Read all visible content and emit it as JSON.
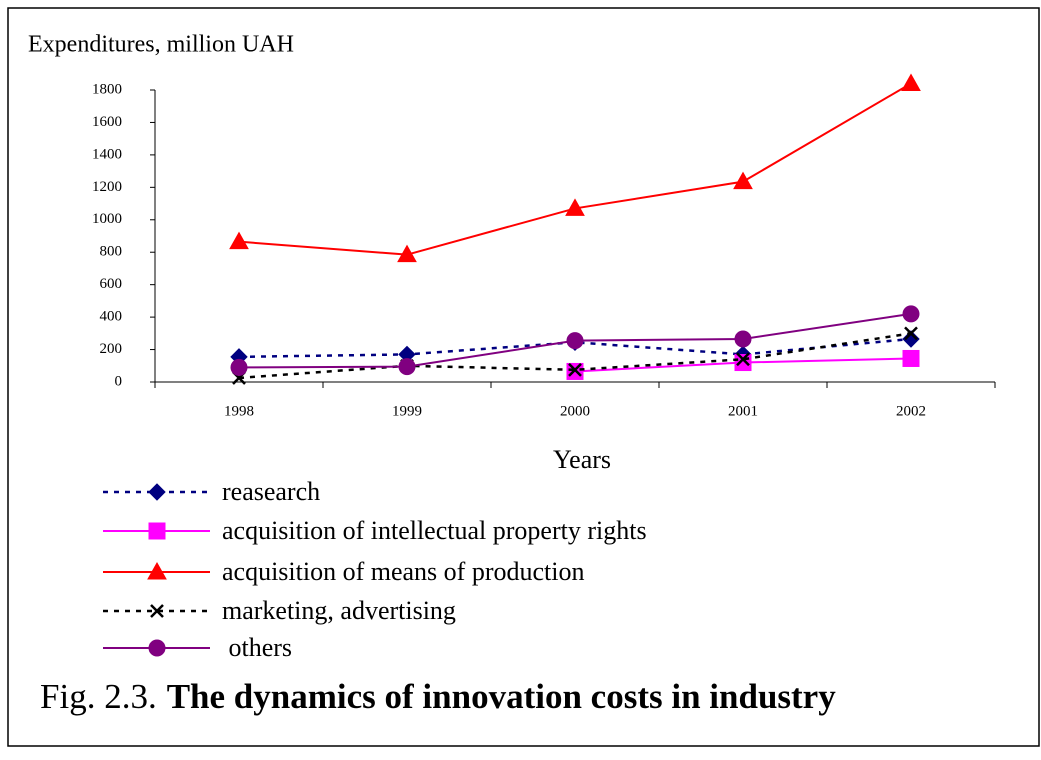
{
  "chart_data": {
    "type": "line",
    "y_axis_label": "Expenditures, million UAH",
    "x_axis_label": "Years",
    "figure_label": "Fig. 2.3.",
    "title": "The dynamics of innovation costs in industry",
    "categories": [
      "1998",
      "1999",
      "2000",
      "2001",
      "2002"
    ],
    "series": [
      {
        "name": "reasearch",
        "color": "#000080",
        "marker": "diamond",
        "dash": true,
        "values": [
          155,
          170,
          245,
          170,
          265
        ]
      },
      {
        "name": "acquisition of intellectual property rights",
        "color": "#ff00ff",
        "marker": "square",
        "dash": false,
        "values": [
          null,
          null,
          65,
          120,
          145
        ]
      },
      {
        "name": "acquisition of means of production",
        "color": "#ff0000",
        "marker": "triangle",
        "dash": false,
        "values": [
          865,
          785,
          1070,
          1235,
          1840
        ]
      },
      {
        "name": "marketing, advertising",
        "color": "#000000",
        "marker": "cross",
        "dash": true,
        "values": [
          25,
          100,
          75,
          140,
          300
        ]
      },
      {
        "name": " others",
        "color": "#800080",
        "marker": "circle",
        "dash": false,
        "values": [
          90,
          95,
          255,
          265,
          420
        ]
      }
    ],
    "ylim": [
      0,
      1800
    ],
    "yticks": [
      0,
      200,
      400,
      600,
      800,
      1000,
      1200,
      1400,
      1600,
      1800
    ],
    "grid": false
  }
}
